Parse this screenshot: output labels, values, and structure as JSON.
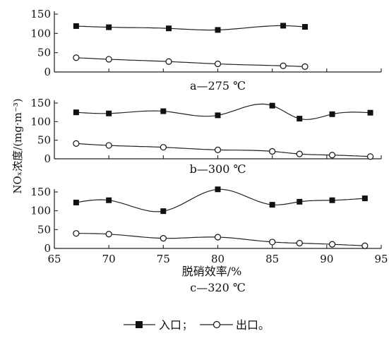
{
  "figure": {
    "ylabel": "NOₓ浓度/(mg·m⁻³)",
    "xlabel": "脱硝效率/%"
  },
  "legend": {
    "inlet": "入口",
    "separator": "；",
    "outlet": "出口",
    "end": "。"
  },
  "chart_data": [
    {
      "type": "line",
      "caption": "a—275 ℃",
      "ylim": [
        0,
        150
      ],
      "yticks": [
        0,
        50,
        100,
        150
      ],
      "series": [
        {
          "name": "入口",
          "marker": "filled-square",
          "x": [
            67,
            70,
            75.5,
            80,
            86,
            88
          ],
          "y": [
            119,
            116,
            113,
            109,
            120,
            117
          ]
        },
        {
          "name": "出口",
          "marker": "open-circle",
          "x": [
            67,
            70,
            75.5,
            80,
            86,
            88
          ],
          "y": [
            37,
            33,
            27,
            21,
            16,
            14
          ]
        }
      ]
    },
    {
      "type": "line",
      "caption": "b—300 ℃",
      "ylim": [
        0,
        150
      ],
      "yticks": [
        0,
        50,
        100,
        150
      ],
      "series": [
        {
          "name": "入口",
          "marker": "filled-square",
          "x": [
            67,
            70,
            75,
            80,
            85,
            87.5,
            90.5,
            94
          ],
          "y": [
            125,
            122,
            128,
            117,
            143,
            108,
            120,
            124
          ]
        },
        {
          "name": "出口",
          "marker": "open-circle",
          "x": [
            67,
            70,
            75,
            80,
            85,
            87.5,
            90.5,
            94
          ],
          "y": [
            41,
            36,
            31,
            24,
            20,
            13,
            10,
            6
          ]
        }
      ]
    },
    {
      "type": "line",
      "caption": "c—320 ℃",
      "xlim": [
        65,
        95
      ],
      "xticks": [
        65,
        70,
        75,
        80,
        85,
        90,
        95
      ],
      "ylim": [
        0,
        150
      ],
      "yticks": [
        0,
        50,
        100,
        150
      ],
      "series": [
        {
          "name": "入口",
          "marker": "filled-square",
          "x": [
            67,
            70,
            75,
            80,
            85,
            87.5,
            90.5,
            93.5
          ],
          "y": [
            122,
            128,
            99,
            157,
            116,
            124,
            128,
            133
          ]
        },
        {
          "name": "出口",
          "marker": "open-circle",
          "x": [
            67,
            70,
            75,
            80,
            85,
            87.5,
            90.5,
            93.5
          ],
          "y": [
            40,
            38,
            27,
            30,
            17,
            14,
            11,
            7
          ]
        }
      ]
    }
  ]
}
